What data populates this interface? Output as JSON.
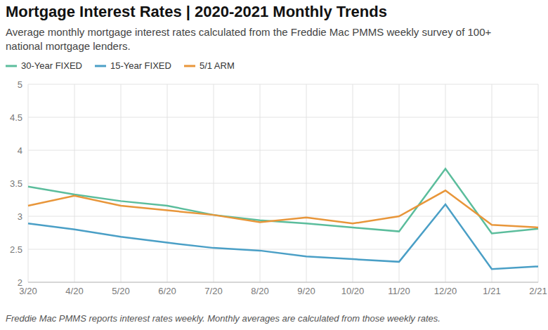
{
  "chart_data": {
    "type": "line",
    "title": "Mortgage Interest Rates | 2020-2021 Monthly Trends",
    "subtitle": "Average monthly mortgage interest rates calculated from the Freddie Mac PMMS weekly survey of 100+ national mortgage lenders.",
    "footnote": "Freddie Mac PMMS reports interest rates weekly. Monthly averages are calculated from those weekly rates.",
    "categories": [
      "3/20",
      "4/20",
      "5/20",
      "6/20",
      "7/20",
      "8/20",
      "9/20",
      "10/20",
      "11/20",
      "12/20",
      "1/21",
      "2/21"
    ],
    "series": [
      {
        "name": "30-Year FIXED",
        "color": "#5bbd9c",
        "values": [
          3.45,
          3.33,
          3.23,
          3.16,
          3.02,
          2.94,
          2.89,
          2.83,
          2.77,
          3.72,
          2.74,
          2.81
        ]
      },
      {
        "name": "15-Year FIXED",
        "color": "#4a9fc6",
        "values": [
          2.89,
          2.8,
          2.69,
          2.6,
          2.52,
          2.48,
          2.39,
          2.35,
          2.31,
          3.18,
          2.2,
          2.24
        ]
      },
      {
        "name": "5/1 ARM",
        "color": "#e8963a",
        "values": [
          3.16,
          3.31,
          3.16,
          3.09,
          3.02,
          2.91,
          2.98,
          2.89,
          3.0,
          3.39,
          2.87,
          2.83
        ]
      }
    ],
    "ylim": [
      2,
      5
    ],
    "yticks": [
      2,
      2.5,
      3,
      3.5,
      4,
      4.5,
      5
    ],
    "grid": true,
    "legend": "top-left"
  }
}
